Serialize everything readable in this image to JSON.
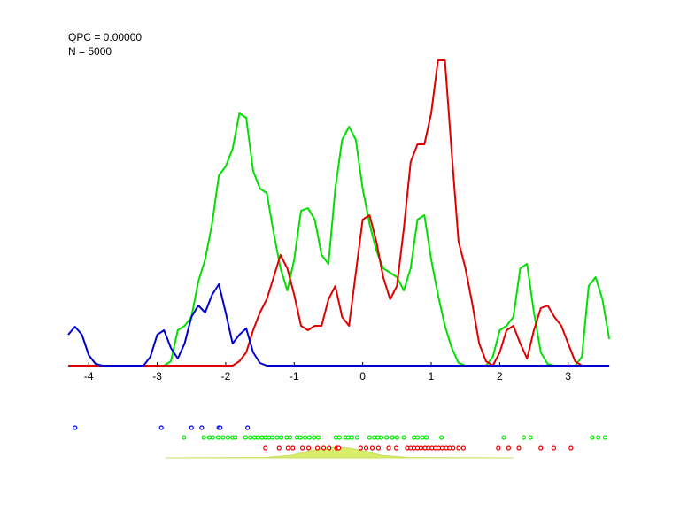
{
  "chart_data": {
    "type": "line",
    "annotations": [
      "QPC = 0.00000",
      "N = 5000"
    ],
    "xlim": [
      -4.3,
      3.65
    ],
    "xticks": [
      -4,
      -3,
      -2,
      -1,
      0,
      1,
      2,
      3
    ],
    "ylim": [
      0,
      350
    ],
    "x": [
      -4.3,
      -4.2,
      -4.1,
      -4,
      -3.9,
      -3.8,
      -3.7,
      -3.6,
      -3.5,
      -3.4,
      -3.3,
      -3.2,
      -3.1,
      -3,
      -2.9,
      -2.8,
      -2.7,
      -2.6,
      -2.5,
      -2.4,
      -2.3,
      -2.2,
      -2.1,
      -2,
      -1.9,
      -1.8,
      -1.7,
      -1.6,
      -1.5,
      -1.4,
      -1.3,
      -1.2,
      -1.1,
      -1,
      -0.9,
      -0.8,
      -0.7,
      -0.6,
      -0.5,
      -0.4,
      -0.3,
      -0.2,
      -0.1,
      0,
      0.1,
      0.2,
      0.3,
      0.4,
      0.5,
      0.6,
      0.7,
      0.8,
      0.9,
      1,
      1.1,
      1.2,
      1.3,
      1.4,
      1.5,
      1.6,
      1.7,
      1.8,
      1.9,
      2,
      2.1,
      2.2,
      2.3,
      2.4,
      2.5,
      2.6,
      2.7,
      2.8,
      2.9,
      3,
      3.1,
      3.2,
      3.3,
      3.4,
      3.5,
      3.6
    ],
    "series": [
      {
        "color": "#00e000",
        "values": [
          0,
          0,
          0,
          0,
          0,
          0,
          0,
          0,
          0,
          0,
          0,
          0,
          0,
          0,
          0,
          5,
          40,
          45,
          55,
          95,
          120,
          160,
          215,
          225,
          245,
          285,
          280,
          220,
          200,
          195,
          150,
          110,
          85,
          120,
          175,
          178,
          165,
          125,
          115,
          200,
          255,
          270,
          255,
          200,
          160,
          130,
          110,
          105,
          100,
          85,
          110,
          165,
          170,
          120,
          80,
          45,
          20,
          3,
          0,
          0,
          0,
          0,
          10,
          40,
          45,
          55,
          110,
          115,
          60,
          15,
          2,
          0,
          0,
          0,
          0,
          10,
          90,
          100,
          75,
          30
        ]
      },
      {
        "color": "#e00000",
        "values": [
          0,
          0,
          0,
          0,
          0,
          0,
          0,
          0,
          0,
          0,
          0,
          0,
          0,
          0,
          0,
          0,
          0,
          0,
          0,
          0,
          0,
          0,
          0,
          0,
          0,
          5,
          15,
          40,
          60,
          75,
          100,
          125,
          110,
          80,
          45,
          40,
          45,
          45,
          75,
          90,
          55,
          45,
          105,
          165,
          170,
          140,
          100,
          75,
          90,
          155,
          230,
          250,
          250,
          285,
          345,
          345,
          240,
          140,
          110,
          70,
          25,
          5,
          0,
          15,
          40,
          45,
          25,
          8,
          40,
          65,
          68,
          55,
          45,
          25,
          5,
          0,
          0,
          0,
          0,
          0
        ]
      },
      {
        "color": "#0000d0",
        "values": [
          35,
          44,
          35,
          12,
          2,
          0,
          0,
          0,
          0,
          0,
          0,
          0,
          10,
          35,
          40,
          20,
          8,
          25,
          55,
          68,
          60,
          80,
          92,
          60,
          25,
          35,
          42,
          15,
          3,
          0,
          0,
          0,
          0,
          0,
          0,
          0,
          0,
          0,
          0,
          0,
          0,
          0,
          0,
          0,
          0,
          0,
          0,
          0,
          0,
          0,
          0,
          0,
          0,
          0,
          0,
          0,
          0,
          0,
          0,
          0,
          0,
          0,
          0,
          0,
          0,
          0,
          0,
          0,
          0,
          0,
          0,
          0,
          0,
          0,
          0,
          0,
          0,
          0,
          0,
          0
        ]
      }
    ],
    "points": [
      {
        "color": "#0000ff",
        "values": [
          -4.2,
          -2.94,
          -2.5,
          -2.35,
          -2.1,
          -2.08,
          -1.68
        ]
      },
      {
        "color": "#00ee00",
        "values": [
          -2.61,
          -2.32,
          -2.24,
          -2.19,
          -2.11,
          -2.04,
          -1.97,
          -1.9,
          -1.86,
          -1.71,
          -1.64,
          -1.58,
          -1.53,
          -1.47,
          -1.42,
          -1.37,
          -1.32,
          -1.25,
          -1.19,
          -1.11,
          -1.06,
          -0.96,
          -0.91,
          -0.84,
          -0.78,
          -0.71,
          -0.65,
          -0.39,
          -0.34,
          -0.25,
          -0.21,
          -0.16,
          -0.08,
          0.1,
          0.17,
          0.22,
          0.27,
          0.35,
          0.43,
          0.5,
          0.6,
          0.75,
          0.8,
          0.87,
          0.93,
          1.15,
          2.06,
          2.35,
          2.45,
          3.35,
          3.44,
          3.54
        ]
      },
      {
        "color": "#ee0000",
        "values": [
          -1.42,
          -1.22,
          -1.09,
          -1.02,
          -0.88,
          -0.79,
          -0.66,
          -0.57,
          -0.49,
          -0.38,
          -0.35,
          -0.03,
          0.05,
          0.14,
          0.23,
          0.38,
          0.49,
          0.65,
          0.7,
          0.75,
          0.8,
          0.85,
          0.91,
          0.96,
          1.01,
          1.06,
          1.11,
          1.16,
          1.22,
          1.27,
          1.32,
          1.4,
          1.47,
          1.98,
          2.13,
          2.28,
          2.6,
          2.79,
          3.04
        ]
      }
    ]
  }
}
